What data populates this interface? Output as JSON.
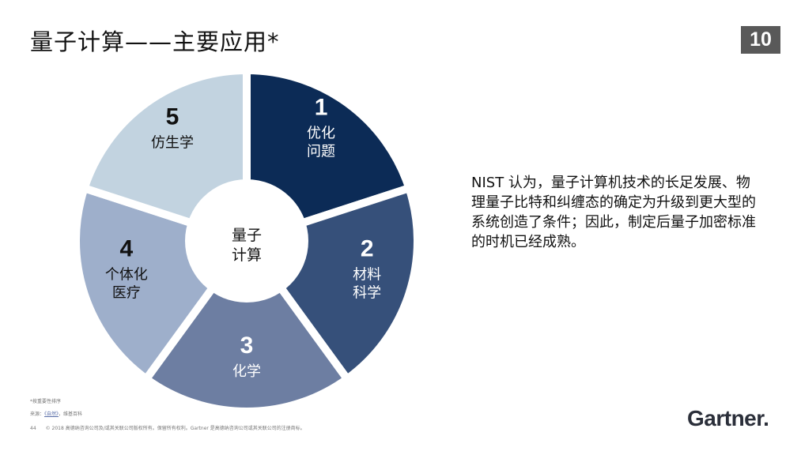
{
  "title": "量子计算——主要应用*",
  "page_badge": "10",
  "wheel": {
    "center_line1": "量子",
    "center_line2": "计算",
    "segments": [
      {
        "number": "1",
        "line1": "优化",
        "line2": "问题",
        "color": "#0c2b56",
        "text_color": "#ffffff"
      },
      {
        "number": "2",
        "line1": "材料",
        "line2": "科学",
        "color": "#36507a",
        "text_color": "#ffffff"
      },
      {
        "number": "3",
        "line1": "化学",
        "line2": "",
        "color": "#6d7ea2",
        "text_color": "#ffffff"
      },
      {
        "number": "4",
        "line1": "个体化",
        "line2": "医疗",
        "color": "#9eafcb",
        "text_color": "#111111"
      },
      {
        "number": "5",
        "line1": "仿生学",
        "line2": "",
        "color": "#c2d3e0",
        "text_color": "#111111"
      }
    ]
  },
  "body_text": "NIST 认为，量子计算机技术的长足发展、物理量子比特和纠缠态的确定为升级到更大型的系统创造了条件；因此，制定后量子加密标准的时机已经成熟。",
  "footer": {
    "note": "*按重要性排序",
    "source_prefix": "来源：",
    "source_link": "《自然》",
    "source_suffix": "，维基百科",
    "page_number": "44",
    "copyright": "© 2018 高德纳咨询公司及/或其关联公司版权所有。保留所有权利。Gartner 是高德纳咨询公司或其关联公司的注册商标。"
  },
  "logo_text": "Gartner",
  "logo_dot": "."
}
